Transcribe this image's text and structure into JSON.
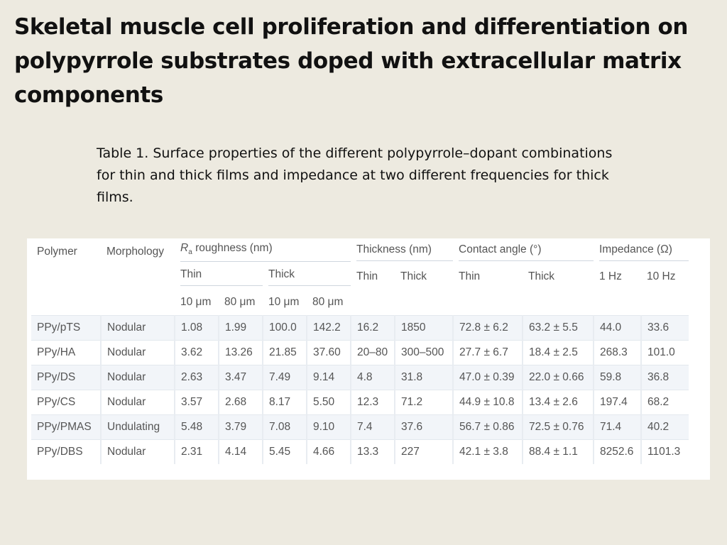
{
  "title": "Skeletal muscle cell proliferation and differentiation on polypyrrole substrates doped with extracellular matrix components",
  "caption": "Table 1. Surface properties of the different polypyrrole–dopant combinations for thin and thick films and impedance at two different frequencies for thick films.",
  "table": {
    "headers": {
      "polymer": "Polymer",
      "morphology": "Morphology",
      "roughness_symbol": "R",
      "roughness_sub": "a",
      "roughness_rest": " roughness (nm)",
      "thickness": "Thickness (nm)",
      "contact_angle": "Contact angle (°)",
      "impedance": "Impedance (Ω)",
      "thin": "Thin",
      "thick": "Thick",
      "hz1": "1 Hz",
      "hz10": "10 Hz",
      "um10": "10 μm",
      "um80": "80 μm"
    },
    "rows": [
      [
        "PPy/pTS",
        "Nodular",
        "1.08",
        "1.99",
        "100.0",
        "142.2",
        "16.2",
        "1850",
        "72.8 ± 6.2",
        "63.2 ± 5.5",
        "44.0",
        "33.6"
      ],
      [
        "PPy/HA",
        "Nodular",
        "3.62",
        "13.26",
        "21.85",
        "37.60",
        "20–80",
        "300–500",
        "27.7 ± 6.7",
        "18.4 ± 2.5",
        "268.3",
        "101.0"
      ],
      [
        "PPy/DS",
        "Nodular",
        "2.63",
        "3.47",
        "7.49",
        "9.14",
        "4.8",
        "31.8",
        "47.0 ± 0.39",
        "22.0 ± 0.66",
        "59.8",
        "36.8"
      ],
      [
        "PPy/CS",
        "Nodular",
        "3.57",
        "2.68",
        "8.17",
        "5.50",
        "12.3",
        "71.2",
        "44.9 ± 10.8",
        "13.4 ± 2.6",
        "197.4",
        "68.2"
      ],
      [
        "PPy/PMAS",
        "Undulating",
        "5.48",
        "3.79",
        "7.08",
        "9.10",
        "7.4",
        "37.6",
        "56.7 ± 0.86",
        "72.5 ± 0.76",
        "71.4",
        "40.2"
      ],
      [
        "PPy/DBS",
        "Nodular",
        "2.31",
        "4.14",
        "5.45",
        "4.66",
        "13.3",
        "227",
        "42.1 ± 3.8",
        "88.4 ± 1.1",
        "8252.6",
        "1101.3"
      ]
    ]
  }
}
